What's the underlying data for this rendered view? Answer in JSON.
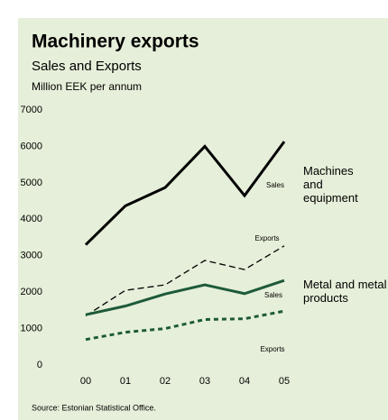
{
  "chart_data": {
    "type": "line",
    "title": "Machinery exports",
    "subtitle": "Sales and Exports",
    "unit_label": "Million EEK per annum",
    "source": "Source: Estonian Statistical Office.",
    "categories": [
      "00",
      "01",
      "02",
      "03",
      "04",
      "05"
    ],
    "series": [
      {
        "name": "Sales",
        "color": "#000000",
        "dashed": false,
        "values": [
          3300,
          4370,
          4870,
          6000,
          4650,
          6130
        ]
      },
      {
        "name": "Exports",
        "color": "#000000",
        "dashed": true,
        "values": [
          1350,
          2050,
          2200,
          2870,
          2620,
          3270
        ]
      },
      {
        "name": "Sales",
        "color": "#1d5a3a",
        "dashed": false,
        "values": [
          1380,
          1620,
          1950,
          2200,
          1960,
          2320
        ]
      },
      {
        "name": "Exports",
        "color": "#1d5a3a",
        "dashed": true,
        "values": [
          700,
          900,
          1000,
          1250,
          1270,
          1480
        ]
      }
    ],
    "annotations": [
      "Machines and equipment",
      "Metal and metal products"
    ],
    "ylim": [
      0,
      7000
    ],
    "yticks": [
      0,
      1000,
      2000,
      3000,
      4000,
      5000,
      6000,
      7000
    ],
    "grid": false
  }
}
